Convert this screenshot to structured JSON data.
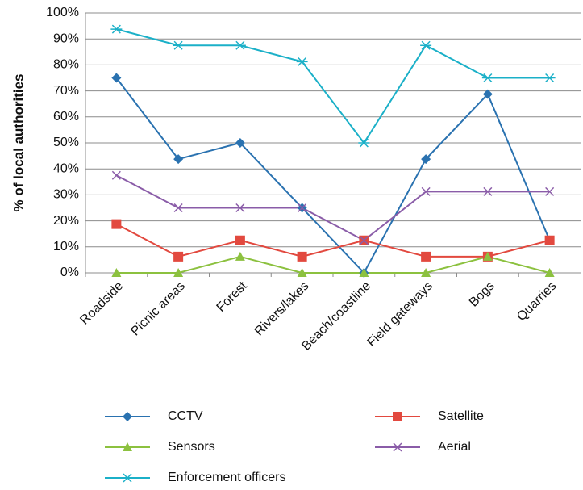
{
  "chart_data": {
    "type": "line",
    "y_label": "% of local authorities",
    "categories": [
      "Roadside",
      "Picnic areas",
      "Forest",
      "Rivers/lakes",
      "Beach/coastline",
      "Field gateways",
      "Bogs",
      "Quarries"
    ],
    "series": [
      {
        "name": "CCTV",
        "color": "#2a72b0",
        "marker": "diamond",
        "values": [
          75,
          43.75,
          50,
          25,
          0,
          43.75,
          68.75,
          12.5
        ]
      },
      {
        "name": "Satellite",
        "color": "#e2493f",
        "marker": "square",
        "values": [
          18.75,
          6.25,
          12.5,
          6.25,
          12.5,
          6.25,
          6.25,
          12.5
        ]
      },
      {
        "name": "Sensors",
        "color": "#8cc13f",
        "marker": "triangle",
        "values": [
          0,
          0,
          6.25,
          0,
          0,
          0,
          6.25,
          0
        ]
      },
      {
        "name": "Aerial",
        "color": "#8a5ca8",
        "marker": "x",
        "values": [
          37.5,
          25,
          25,
          25,
          12.5,
          31.25,
          31.25,
          31.25
        ]
      },
      {
        "name": "Enforcement officers",
        "color": "#1bb0c8",
        "marker": "star",
        "values": [
          93.75,
          87.5,
          87.5,
          81.25,
          50,
          87.5,
          75,
          75
        ]
      }
    ],
    "ylim": [
      0,
      100
    ],
    "yticks": [
      {
        "value": 0,
        "label": "0%"
      },
      {
        "value": 10,
        "label": "10%"
      },
      {
        "value": 20,
        "label": "20%"
      },
      {
        "value": 30,
        "label": "30%"
      },
      {
        "value": 40,
        "label": "40%"
      },
      {
        "value": 50,
        "label": "50%"
      },
      {
        "value": 60,
        "label": "60%"
      },
      {
        "value": 70,
        "label": "70%"
      },
      {
        "value": 80,
        "label": "80%"
      },
      {
        "value": 90,
        "label": "90%"
      },
      {
        "value": 100,
        "label": "100%"
      }
    ],
    "grid": true
  }
}
